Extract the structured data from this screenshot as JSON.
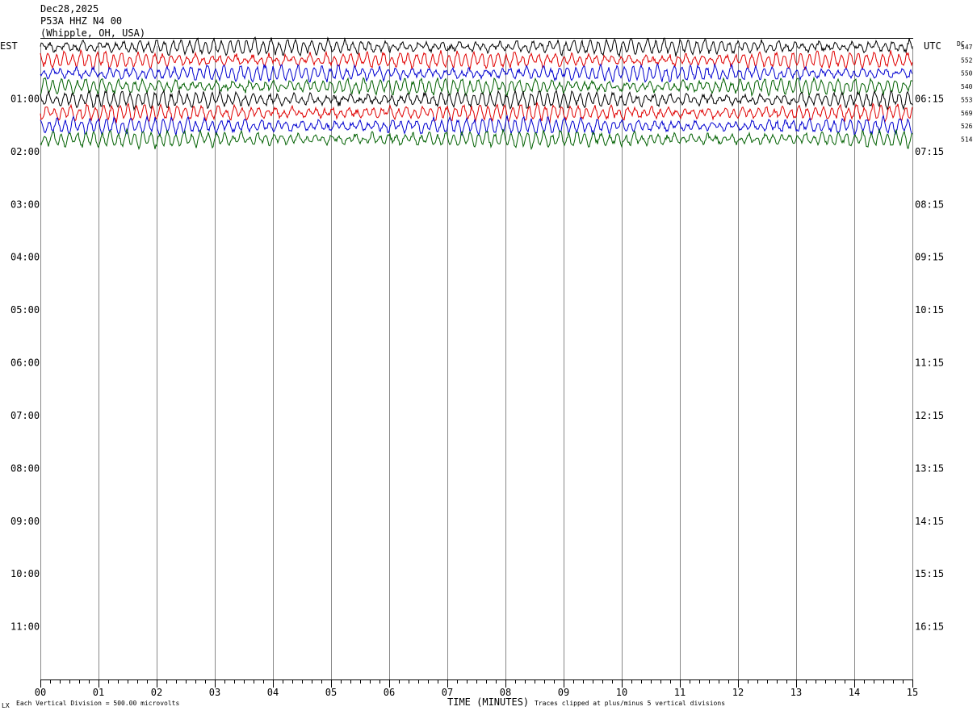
{
  "header": {
    "date": "Dec28,2025",
    "station": "P53A HHZ N4 00",
    "location": "(Whipple, OH, USA)"
  },
  "footer": {
    "mark": "LX",
    "division_note": "Each Vertical Division =  500.00 microvolts",
    "clip_note": "Traces clipped at plus/minus 5 vertical divisions"
  },
  "chart_data": {
    "type": "line",
    "description_kind": "helicorder",
    "xlabel": "TIME (MINUTES)",
    "x_ticks": [
      "00",
      "01",
      "02",
      "03",
      "04",
      "05",
      "06",
      "07",
      "08",
      "09",
      "10",
      "11",
      "12",
      "13",
      "14",
      "15"
    ],
    "xlim": [
      0,
      15
    ],
    "left_axis_title": "EST",
    "right_axis_title": "UTC",
    "dc_label": "DC",
    "left_ticks": [
      "01:00",
      "02:00",
      "03:00",
      "04:00",
      "05:00",
      "06:00",
      "07:00",
      "08:00",
      "09:00",
      "10:00",
      "11:00"
    ],
    "right_ticks": [
      "06:15",
      "07:15",
      "08:15",
      "09:15",
      "10:15",
      "11:15",
      "12:15",
      "13:15",
      "14:15",
      "15:15",
      "16:15"
    ],
    "rows_total": 48,
    "rows_per_hour": 4,
    "row_colors": [
      "#000000",
      "#e00000",
      "#0000d0",
      "#006000"
    ],
    "traces": [
      {
        "row": 0,
        "dc": "547"
      },
      {
        "row": 1,
        "dc": "552"
      },
      {
        "row": 2,
        "dc": "550"
      },
      {
        "row": 3,
        "dc": "540"
      },
      {
        "row": 4,
        "dc": "553"
      },
      {
        "row": 5,
        "dc": "569"
      },
      {
        "row": 6,
        "dc": "526"
      },
      {
        "row": 7,
        "dc": "514"
      }
    ]
  }
}
